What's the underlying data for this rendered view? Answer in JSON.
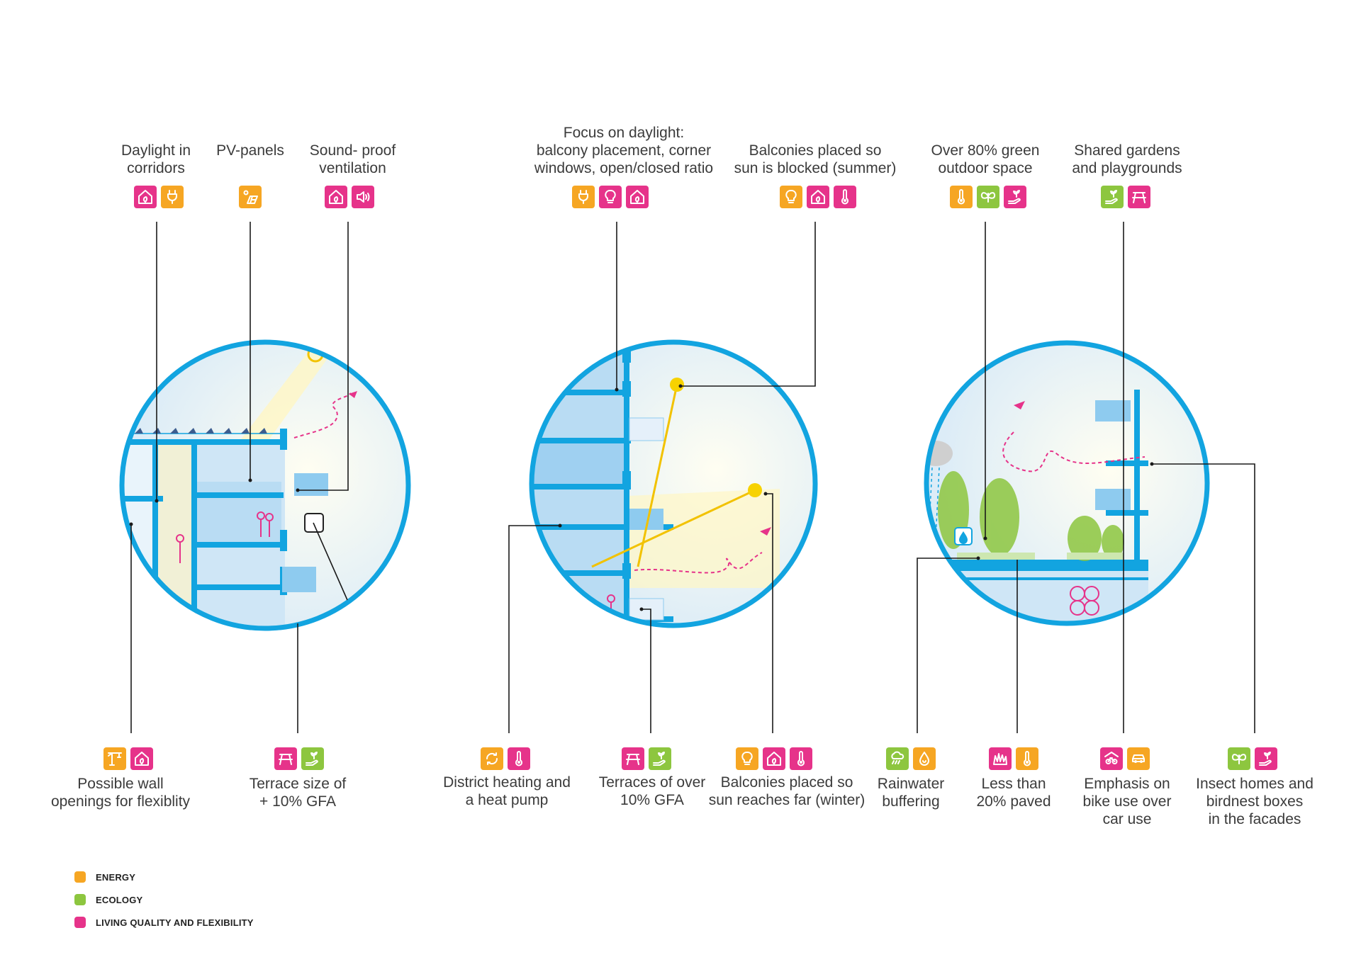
{
  "colors": {
    "energy": "#f6a623",
    "ecology": "#8dc63f",
    "living": "#e6338a",
    "circle": "#12a4e0"
  },
  "top_labels": [
    {
      "id": "daylight-corridors",
      "text": "Daylight in\ncorridors",
      "icons": [
        [
          "living",
          "house-leaf-icon"
        ],
        [
          "energy",
          "plug-icon"
        ]
      ]
    },
    {
      "id": "pv-panels",
      "text": "PV-panels",
      "icons": [
        [
          "energy",
          "solar-panel-icon"
        ]
      ]
    },
    {
      "id": "sound-proof",
      "text": "Sound- proof\nventilation",
      "icons": [
        [
          "living",
          "house-leaf-icon"
        ],
        [
          "living",
          "speaker-icon"
        ]
      ]
    },
    {
      "id": "focus-daylight",
      "text": "Focus on daylight:\nbalcony placement, corner\nwindows, open/closed ratio",
      "icons": [
        [
          "energy",
          "plug-icon"
        ],
        [
          "living",
          "bulb-icon"
        ],
        [
          "living",
          "house-leaf-icon"
        ]
      ]
    },
    {
      "id": "balconies-summer",
      "text": "Balconies placed so\nsun is blocked (summer)",
      "icons": [
        [
          "energy",
          "bulb-icon"
        ],
        [
          "living",
          "house-leaf-icon"
        ],
        [
          "living",
          "thermometer-icon"
        ]
      ]
    },
    {
      "id": "green-outdoor",
      "text": "Over 80% green\noutdoor space",
      "icons": [
        [
          "energy",
          "thermometer-icon"
        ],
        [
          "ecology",
          "butterfly-icon"
        ],
        [
          "living",
          "hand-plant-icon"
        ]
      ]
    },
    {
      "id": "shared-gardens",
      "text": "Shared gardens\nand playgrounds",
      "icons": [
        [
          "ecology",
          "hand-plant-icon"
        ],
        [
          "living",
          "picnic-table-icon"
        ]
      ]
    }
  ],
  "bottom_labels": [
    {
      "id": "wall-openings",
      "text": "Possible wall\nopenings for flexiblity",
      "icons": [
        [
          "energy",
          "crane-icon"
        ],
        [
          "living",
          "house-leaf-icon"
        ]
      ]
    },
    {
      "id": "terrace-size",
      "text": "Terrace size of\n+ 10% GFA",
      "icons": [
        [
          "living",
          "picnic-table-icon"
        ],
        [
          "ecology",
          "hand-plant-icon"
        ]
      ]
    },
    {
      "id": "district-heating",
      "text": "District heating and\na heat pump",
      "icons": [
        [
          "energy",
          "recycle-icon"
        ],
        [
          "living",
          "thermometer-icon"
        ]
      ]
    },
    {
      "id": "terraces-gfa",
      "text": "Terraces of  over\n10% GFA",
      "icons": [
        [
          "living",
          "picnic-table-icon"
        ],
        [
          "ecology",
          "hand-plant-icon"
        ]
      ]
    },
    {
      "id": "balconies-winter",
      "text": "Balconies placed so\nsun reaches far (winter)",
      "icons": [
        [
          "energy",
          "bulb-icon"
        ],
        [
          "living",
          "house-leaf-icon"
        ],
        [
          "living",
          "thermometer-icon"
        ]
      ]
    },
    {
      "id": "rainwater",
      "text": "Rainwater\nbuffering",
      "icons": [
        [
          "ecology",
          "rain-icon"
        ],
        [
          "energy",
          "drop-recycle-icon"
        ]
      ]
    },
    {
      "id": "less-paved",
      "text": "Less than\n20% paved",
      "icons": [
        [
          "living",
          "grass-icon"
        ],
        [
          "energy",
          "thermometer-icon"
        ]
      ]
    },
    {
      "id": "bike-use",
      "text": "Emphasis on\nbike use over\ncar use",
      "icons": [
        [
          "living",
          "bike-shed-icon"
        ],
        [
          "energy",
          "car-icon"
        ]
      ]
    },
    {
      "id": "insect-homes",
      "text": "Insect homes and\nbirdnest boxes\nin the facades",
      "icons": [
        [
          "ecology",
          "butterfly-icon"
        ],
        [
          "living",
          "hand-plant-icon"
        ]
      ]
    }
  ],
  "legend": [
    {
      "key": "energy",
      "label": "ENERGY"
    },
    {
      "key": "ecology",
      "label": "ECOLOGY"
    },
    {
      "key": "living",
      "label": "LIVING QUALITY AND FLEXIBILITY"
    }
  ]
}
